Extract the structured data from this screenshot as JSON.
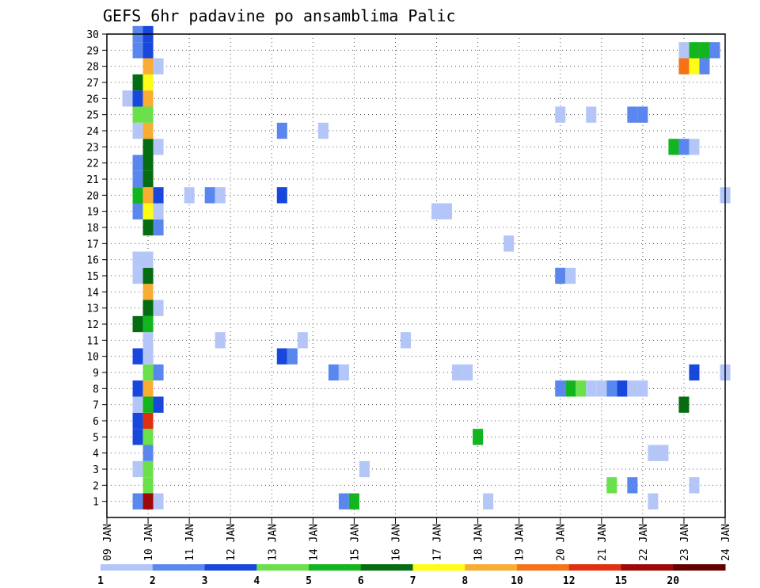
{
  "chart_data": {
    "type": "heatmap",
    "title": "GEFS 6hr padavine po ansamblima Palic",
    "xlabel": "",
    "ylabel": "",
    "x_tick_labels": [
      "09 JAN",
      "10 JAN",
      "11 JAN",
      "12 JAN",
      "13 JAN",
      "14 JAN",
      "15 JAN",
      "16 JAN",
      "17 JAN",
      "18 JAN",
      "19 JAN",
      "20 JAN",
      "21 JAN",
      "22 JAN",
      "23 JAN",
      "24 JAN"
    ],
    "x_range_days": [
      0,
      15
    ],
    "y_tick_labels": [
      "1",
      "2",
      "3",
      "4",
      "5",
      "6",
      "7",
      "8",
      "9",
      "10",
      "11",
      "12",
      "13",
      "14",
      "15",
      "16",
      "17",
      "18",
      "19",
      "20",
      "21",
      "22",
      "23",
      "24",
      "25",
      "26",
      "27",
      "28",
      "29",
      "30"
    ],
    "y_range": [
      0,
      30
    ],
    "grid": "dotted",
    "colorbar": {
      "labels": [
        "1",
        "2",
        "3",
        "4",
        "5",
        "6",
        "7",
        "8",
        "10",
        "12",
        "15",
        "20"
      ],
      "colors": [
        "#b4c6f8",
        "#5a87ee",
        "#1747dc",
        "#6ae04a",
        "#12b51e",
        "#056c11",
        "#fdfd16",
        "#f9ad33",
        "#f57219",
        "#df300f",
        "#9e0808",
        "#650000"
      ]
    },
    "cells": [
      {
        "x": 0.75,
        "y": 1,
        "c": 1
      },
      {
        "x": 1.0,
        "y": 1,
        "c": 10
      },
      {
        "x": 1.25,
        "y": 1,
        "c": 0
      },
      {
        "x": 5.75,
        "y": 1,
        "c": 1
      },
      {
        "x": 6.0,
        "y": 1,
        "c": 4
      },
      {
        "x": 9.25,
        "y": 1,
        "c": 0
      },
      {
        "x": 13.25,
        "y": 1,
        "c": 0
      },
      {
        "x": 1.0,
        "y": 2,
        "c": 3
      },
      {
        "x": 12.25,
        "y": 2,
        "c": 3
      },
      {
        "x": 12.75,
        "y": 2,
        "c": 1
      },
      {
        "x": 14.25,
        "y": 2,
        "c": 0
      },
      {
        "x": 0.75,
        "y": 3,
        "c": 0
      },
      {
        "x": 1.0,
        "y": 3,
        "c": 3
      },
      {
        "x": 6.25,
        "y": 3,
        "c": 0
      },
      {
        "x": 1.0,
        "y": 4,
        "c": 1
      },
      {
        "x": 13.25,
        "y": 4,
        "c": 0
      },
      {
        "x": 13.5,
        "y": 4,
        "c": 0
      },
      {
        "x": 0.75,
        "y": 5,
        "c": 2
      },
      {
        "x": 1.0,
        "y": 5,
        "c": 3
      },
      {
        "x": 9.0,
        "y": 5,
        "c": 4
      },
      {
        "x": 0.75,
        "y": 6,
        "c": 2
      },
      {
        "x": 1.0,
        "y": 6,
        "c": 9
      },
      {
        "x": 0.75,
        "y": 7,
        "c": 0
      },
      {
        "x": 1.0,
        "y": 7,
        "c": 4
      },
      {
        "x": 1.25,
        "y": 7,
        "c": 2
      },
      {
        "x": 14.0,
        "y": 7,
        "c": 5
      },
      {
        "x": 0.75,
        "y": 8,
        "c": 2
      },
      {
        "x": 1.0,
        "y": 8,
        "c": 7
      },
      {
        "x": 11.0,
        "y": 8,
        "c": 1
      },
      {
        "x": 11.25,
        "y": 8,
        "c": 4
      },
      {
        "x": 11.5,
        "y": 8,
        "c": 3
      },
      {
        "x": 11.75,
        "y": 8,
        "c": 0
      },
      {
        "x": 12.0,
        "y": 8,
        "c": 0
      },
      {
        "x": 12.25,
        "y": 8,
        "c": 1
      },
      {
        "x": 12.5,
        "y": 8,
        "c": 2
      },
      {
        "x": 12.75,
        "y": 8,
        "c": 0
      },
      {
        "x": 13.0,
        "y": 8,
        "c": 0
      },
      {
        "x": 1.0,
        "y": 9,
        "c": 3
      },
      {
        "x": 1.25,
        "y": 9,
        "c": 1
      },
      {
        "x": 5.5,
        "y": 9,
        "c": 1
      },
      {
        "x": 5.75,
        "y": 9,
        "c": 0
      },
      {
        "x": 8.5,
        "y": 9,
        "c": 0
      },
      {
        "x": 8.75,
        "y": 9,
        "c": 0
      },
      {
        "x": 14.25,
        "y": 9,
        "c": 2
      },
      {
        "x": 15.0,
        "y": 9,
        "c": 0
      },
      {
        "x": 0.75,
        "y": 10,
        "c": 2
      },
      {
        "x": 1.0,
        "y": 10,
        "c": 0
      },
      {
        "x": 4.25,
        "y": 10,
        "c": 2
      },
      {
        "x": 4.5,
        "y": 10,
        "c": 1
      },
      {
        "x": 1.0,
        "y": 11,
        "c": 0
      },
      {
        "x": 2.75,
        "y": 11,
        "c": 0
      },
      {
        "x": 4.75,
        "y": 11,
        "c": 0
      },
      {
        "x": 7.25,
        "y": 11,
        "c": 0
      },
      {
        "x": 0.75,
        "y": 12,
        "c": 5
      },
      {
        "x": 1.0,
        "y": 12,
        "c": 4
      },
      {
        "x": 1.0,
        "y": 13,
        "c": 5
      },
      {
        "x": 1.25,
        "y": 13,
        "c": 0
      },
      {
        "x": 1.0,
        "y": 14,
        "c": 7
      },
      {
        "x": 0.75,
        "y": 15,
        "c": 0
      },
      {
        "x": 1.0,
        "y": 15,
        "c": 5
      },
      {
        "x": 11.0,
        "y": 15,
        "c": 1
      },
      {
        "x": 11.25,
        "y": 15,
        "c": 0
      },
      {
        "x": 0.75,
        "y": 16,
        "c": 0
      },
      {
        "x": 1.0,
        "y": 16,
        "c": 0
      },
      {
        "x": 9.75,
        "y": 17,
        "c": 0
      },
      {
        "x": 1.0,
        "y": 18,
        "c": 5
      },
      {
        "x": 1.25,
        "y": 18,
        "c": 1
      },
      {
        "x": 0.75,
        "y": 19,
        "c": 1
      },
      {
        "x": 1.0,
        "y": 19,
        "c": 6
      },
      {
        "x": 1.25,
        "y": 19,
        "c": 0
      },
      {
        "x": 8.0,
        "y": 19,
        "c": 0
      },
      {
        "x": 8.25,
        "y": 19,
        "c": 0
      },
      {
        "x": 0.75,
        "y": 20,
        "c": 4
      },
      {
        "x": 1.0,
        "y": 20,
        "c": 7
      },
      {
        "x": 1.25,
        "y": 20,
        "c": 2
      },
      {
        "x": 2.0,
        "y": 20,
        "c": 0
      },
      {
        "x": 2.5,
        "y": 20,
        "c": 1
      },
      {
        "x": 2.75,
        "y": 20,
        "c": 0
      },
      {
        "x": 4.25,
        "y": 20,
        "c": 2
      },
      {
        "x": 15.0,
        "y": 20,
        "c": 0
      },
      {
        "x": 0.75,
        "y": 21,
        "c": 1
      },
      {
        "x": 1.0,
        "y": 21,
        "c": 5
      },
      {
        "x": 0.75,
        "y": 22,
        "c": 1
      },
      {
        "x": 1.0,
        "y": 22,
        "c": 5
      },
      {
        "x": 1.0,
        "y": 23,
        "c": 5
      },
      {
        "x": 1.25,
        "y": 23,
        "c": 0
      },
      {
        "x": 13.75,
        "y": 23,
        "c": 4
      },
      {
        "x": 14.0,
        "y": 23,
        "c": 1
      },
      {
        "x": 14.25,
        "y": 23,
        "c": 0
      },
      {
        "x": 0.75,
        "y": 24,
        "c": 0
      },
      {
        "x": 1.0,
        "y": 24,
        "c": 7
      },
      {
        "x": 4.25,
        "y": 24,
        "c": 1
      },
      {
        "x": 5.25,
        "y": 24,
        "c": 0
      },
      {
        "x": 0.75,
        "y": 25,
        "c": 3
      },
      {
        "x": 1.0,
        "y": 25,
        "c": 3
      },
      {
        "x": 11.0,
        "y": 25,
        "c": 0
      },
      {
        "x": 11.75,
        "y": 25,
        "c": 0
      },
      {
        "x": 12.75,
        "y": 25,
        "c": 1
      },
      {
        "x": 13.0,
        "y": 25,
        "c": 1
      },
      {
        "x": 0.5,
        "y": 26,
        "c": 0
      },
      {
        "x": 0.75,
        "y": 26,
        "c": 2
      },
      {
        "x": 1.0,
        "y": 26,
        "c": 7
      },
      {
        "x": 0.75,
        "y": 27,
        "c": 5
      },
      {
        "x": 1.0,
        "y": 27,
        "c": 6
      },
      {
        "x": 1.0,
        "y": 28,
        "c": 7
      },
      {
        "x": 1.25,
        "y": 28,
        "c": 0
      },
      {
        "x": 14.0,
        "y": 28,
        "c": 8
      },
      {
        "x": 14.25,
        "y": 28,
        "c": 6
      },
      {
        "x": 14.5,
        "y": 28,
        "c": 1
      },
      {
        "x": 0.75,
        "y": 29,
        "c": 1
      },
      {
        "x": 1.0,
        "y": 29,
        "c": 2
      },
      {
        "x": 14.0,
        "y": 29,
        "c": 0
      },
      {
        "x": 14.25,
        "y": 29,
        "c": 4
      },
      {
        "x": 14.5,
        "y": 29,
        "c": 4
      },
      {
        "x": 14.75,
        "y": 29,
        "c": 1
      },
      {
        "x": 0.75,
        "y": 30,
        "c": 1
      },
      {
        "x": 1.0,
        "y": 30,
        "c": 2
      }
    ]
  }
}
